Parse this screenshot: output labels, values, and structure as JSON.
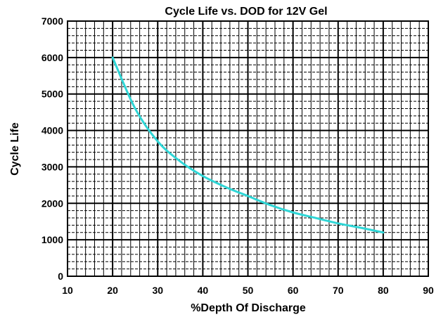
{
  "chart_data": {
    "type": "line",
    "title": "Cycle Life vs. DOD for 12V Gel",
    "xlabel": "%Depth Of Discharge",
    "ylabel": "Cycle Life",
    "xlim": [
      10,
      90
    ],
    "ylim": [
      0,
      7000
    ],
    "x_ticks": [
      "10",
      "20",
      "30",
      "40",
      "50",
      "60",
      "70",
      "80",
      "90"
    ],
    "y_ticks": [
      "0",
      "1000",
      "2000",
      "3000",
      "4000",
      "5000",
      "6000",
      "7000"
    ],
    "grid": true,
    "legend": "none",
    "series": [
      {
        "color": "#2fd6d6",
        "x": [
          20,
          25,
          30,
          35,
          40,
          45,
          50,
          55,
          60,
          65,
          70,
          75,
          80
        ],
        "y": [
          6000,
          4600,
          3700,
          3150,
          2750,
          2450,
          2200,
          1950,
          1750,
          1600,
          1450,
          1330,
          1200
        ]
      }
    ]
  }
}
